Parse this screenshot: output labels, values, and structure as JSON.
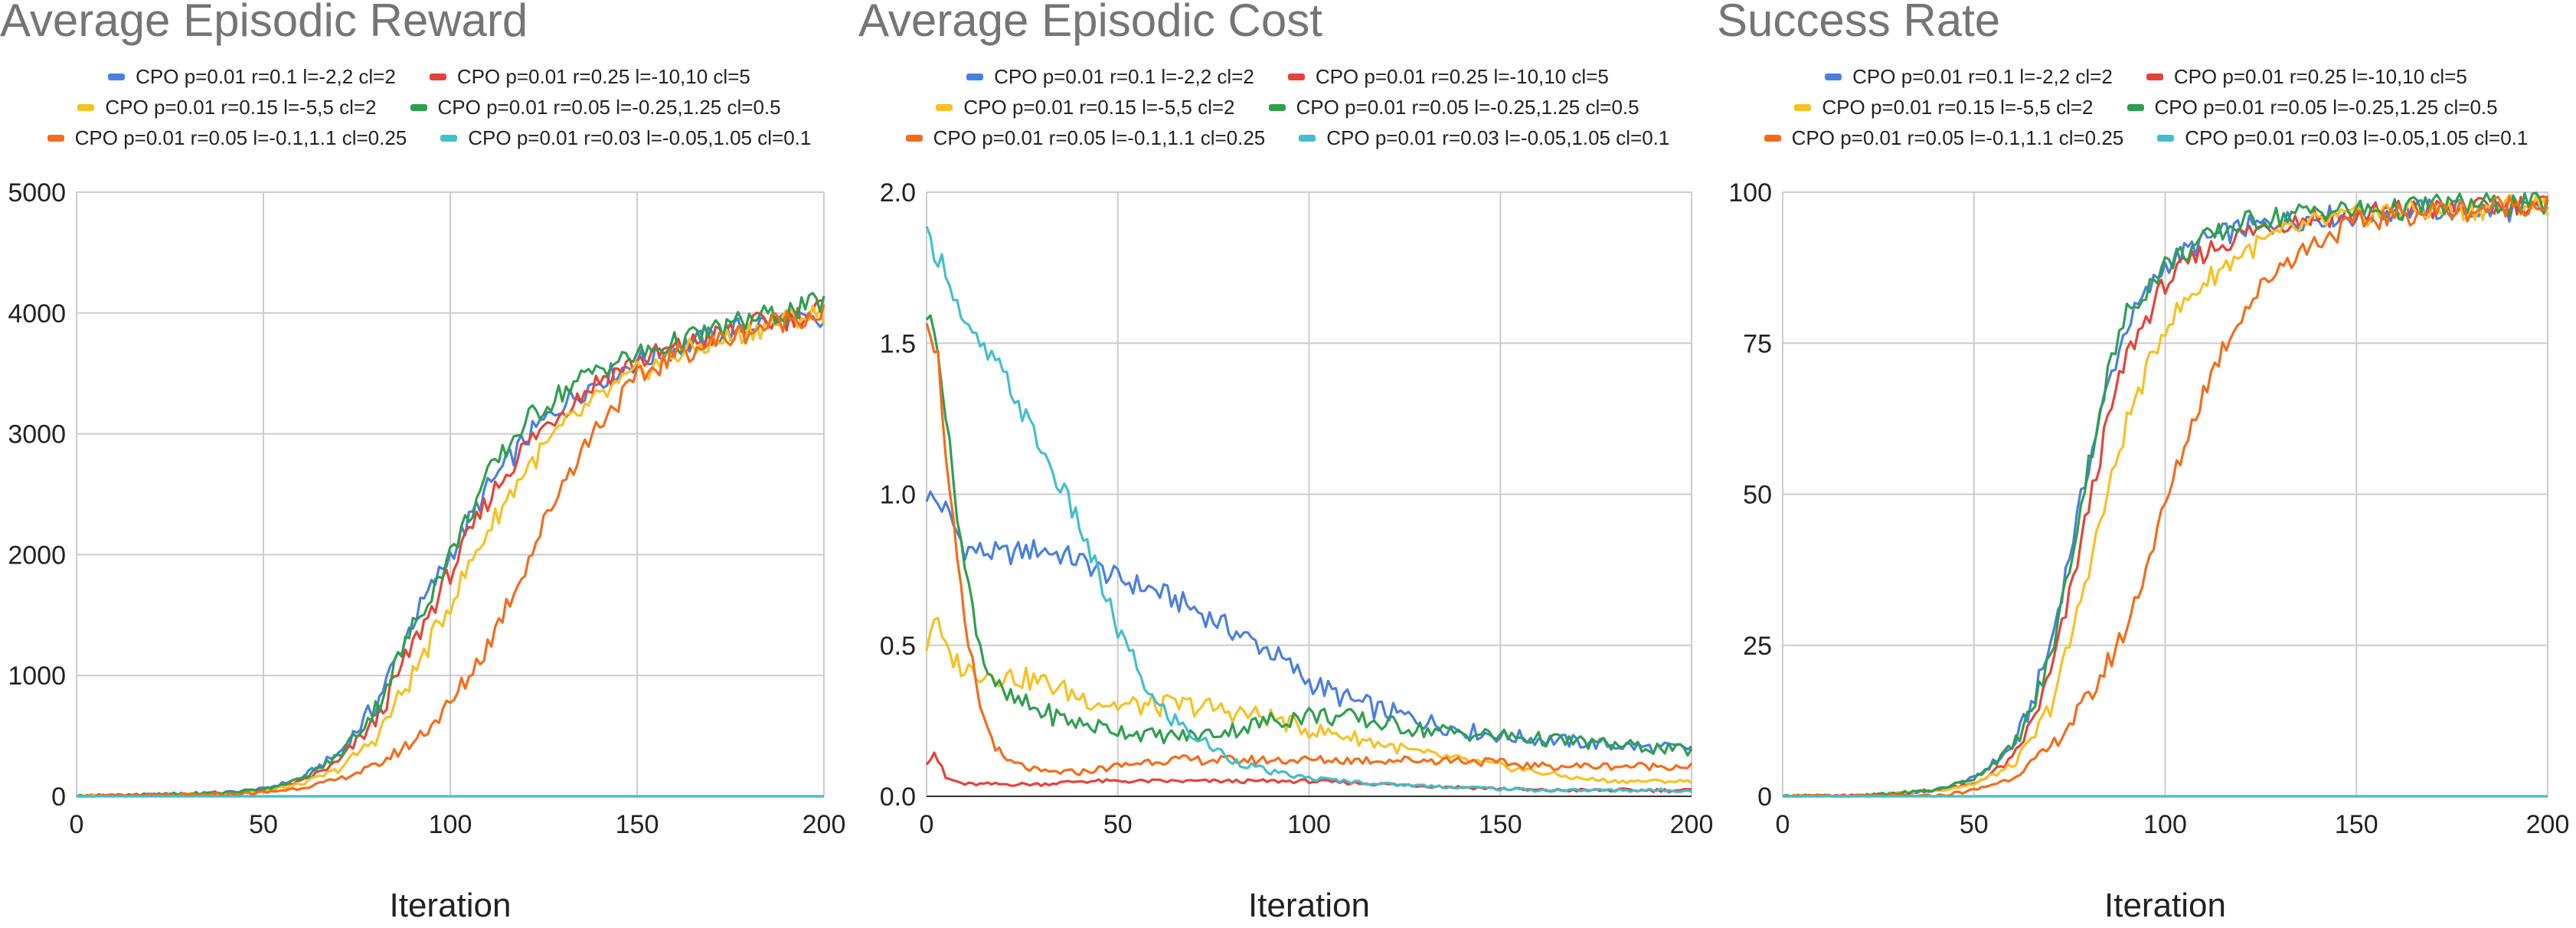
{
  "legend_labels": [
    "CPO p=0.01 r=0.1 l=-2,2 cl=2",
    "CPO p=0.01 r=0.25 l=-10,10 cl=5",
    "CPO p=0.01 r=0.15 l=-5,5 cl=2",
    "CPO p=0.01 r=0.05 l=-0.25,1.25 cl=0.5",
    "CPO p=0.01 r=0.05 l=-0.1,1.1 cl=0.25",
    "CPO p=0.01 r=0.03 l=-0.05,1.05 cl=0.1"
  ],
  "series_colors": [
    "#4a7fe0",
    "#e5433a",
    "#f6c122",
    "#2f9f4f",
    "#f46c1a",
    "#42bfcb"
  ],
  "chart_data": [
    {
      "type": "line",
      "title": "Average Episodic Reward",
      "xlabel": "Iteration",
      "ylabel": "",
      "xlim": [
        0,
        200
      ],
      "ylim": [
        0,
        5000
      ],
      "xticks": [
        0,
        50,
        100,
        150,
        200
      ],
      "yticks": [
        0,
        1000,
        2000,
        3000,
        4000,
        5000
      ],
      "ytick_labels": [
        "0",
        "1000",
        "2000",
        "3000",
        "4000",
        "5000"
      ],
      "grid": true,
      "legend_position": "top",
      "series": [
        {
          "name": "CPO p=0.01 r=0.1 l=-2,2 cl=2",
          "color": "#4a7fe0",
          "x": [
            0,
            20,
            40,
            50,
            60,
            70,
            80,
            90,
            100,
            110,
            120,
            130,
            140,
            150,
            160,
            170,
            180,
            190,
            200
          ],
          "y": [
            0,
            10,
            30,
            60,
            150,
            350,
            750,
            1450,
            2000,
            2550,
            2950,
            3250,
            3450,
            3600,
            3700,
            3800,
            3900,
            3950,
            3900
          ]
        },
        {
          "name": "CPO p=0.01 r=0.25 l=-10,10 cl=5",
          "color": "#e5433a",
          "x": [
            0,
            20,
            40,
            50,
            60,
            70,
            80,
            90,
            100,
            110,
            120,
            130,
            140,
            150,
            160,
            170,
            180,
            190,
            200
          ],
          "y": [
            0,
            8,
            25,
            50,
            120,
            280,
            620,
            1250,
            1850,
            2450,
            2900,
            3200,
            3450,
            3600,
            3700,
            3800,
            3900,
            3950,
            4050
          ]
        },
        {
          "name": "CPO p=0.01 r=0.15 l=-5,5 cl=2",
          "color": "#f6c122",
          "x": [
            0,
            20,
            40,
            50,
            60,
            70,
            80,
            90,
            100,
            110,
            120,
            130,
            140,
            150,
            160,
            170,
            180,
            190,
            200
          ],
          "y": [
            0,
            8,
            22,
            45,
            100,
            220,
            480,
            1000,
            1600,
            2200,
            2700,
            3050,
            3300,
            3500,
            3650,
            3750,
            3850,
            3950,
            4000
          ]
        },
        {
          "name": "CPO p=0.01 r=0.05 l=-0.25,1.25 cl=0.5",
          "color": "#2f9f4f",
          "x": [
            0,
            20,
            40,
            50,
            60,
            70,
            80,
            90,
            100,
            110,
            120,
            130,
            140,
            150,
            160,
            170,
            180,
            190,
            200
          ],
          "y": [
            0,
            10,
            30,
            60,
            140,
            330,
            720,
            1400,
            2000,
            2650,
            3100,
            3350,
            3550,
            3650,
            3750,
            3850,
            3950,
            4000,
            4100
          ]
        },
        {
          "name": "CPO p=0.01 r=0.05 l=-0.1,1.1 cl=0.25",
          "color": "#f46c1a",
          "x": [
            0,
            20,
            40,
            50,
            60,
            70,
            80,
            90,
            100,
            110,
            120,
            130,
            140,
            150,
            160,
            170,
            180,
            190,
            200
          ],
          "y": [
            0,
            5,
            15,
            30,
            70,
            140,
            250,
            450,
            750,
            1250,
            1900,
            2600,
            3100,
            3450,
            3650,
            3750,
            3850,
            3950,
            4000
          ]
        },
        {
          "name": "CPO p=0.01 r=0.03 l=-0.05,1.05 cl=0.1",
          "color": "#42bfcb",
          "x": [
            0,
            50,
            100,
            150,
            200
          ],
          "y": [
            0,
            0,
            0,
            0,
            0
          ]
        }
      ]
    },
    {
      "type": "line",
      "title": "Average Episodic Cost",
      "xlabel": "Iteration",
      "ylabel": "",
      "xlim": [
        0,
        200
      ],
      "ylim": [
        0,
        2.0
      ],
      "xticks": [
        0,
        50,
        100,
        150,
        200
      ],
      "yticks": [
        0,
        0.5,
        1.0,
        1.5,
        2.0
      ],
      "ytick_labels": [
        "0.0",
        "0.5",
        "1.0",
        "1.5",
        "2.0"
      ],
      "grid": true,
      "legend_position": "top",
      "series": [
        {
          "name": "CPO p=0.01 r=0.1 l=-2,2 cl=2",
          "color": "#4a7fe0",
          "x": [
            0,
            5,
            10,
            20,
            30,
            40,
            50,
            60,
            70,
            80,
            90,
            100,
            110,
            120,
            130,
            140,
            150,
            160,
            170,
            180,
            190,
            200
          ],
          "y": [
            1.0,
            0.95,
            0.82,
            0.8,
            0.82,
            0.78,
            0.72,
            0.68,
            0.62,
            0.55,
            0.48,
            0.38,
            0.32,
            0.28,
            0.25,
            0.22,
            0.2,
            0.19,
            0.18,
            0.17,
            0.16,
            0.16
          ]
        },
        {
          "name": "CPO p=0.01 r=0.25 l=-10,10 cl=5",
          "color": "#e5433a",
          "x": [
            0,
            2,
            5,
            10,
            20,
            30,
            40,
            50,
            60,
            80,
            100,
            120,
            140,
            160,
            180,
            200
          ],
          "y": [
            0.12,
            0.15,
            0.06,
            0.04,
            0.04,
            0.04,
            0.05,
            0.05,
            0.05,
            0.05,
            0.05,
            0.04,
            0.03,
            0.02,
            0.02,
            0.02
          ]
        },
        {
          "name": "CPO p=0.01 r=0.15 l=-5,5 cl=2",
          "color": "#f6c122",
          "x": [
            0,
            2,
            5,
            10,
            20,
            30,
            40,
            50,
            60,
            70,
            80,
            90,
            100,
            110,
            120,
            130,
            140,
            150,
            160,
            170,
            180,
            190,
            200
          ],
          "y": [
            0.5,
            0.6,
            0.48,
            0.42,
            0.4,
            0.38,
            0.33,
            0.3,
            0.3,
            0.3,
            0.28,
            0.26,
            0.22,
            0.2,
            0.17,
            0.14,
            0.12,
            0.1,
            0.08,
            0.06,
            0.05,
            0.05,
            0.05
          ]
        },
        {
          "name": "CPO p=0.01 r=0.05 l=-0.25,1.25 cl=0.5",
          "color": "#2f9f4f",
          "x": [
            0,
            3,
            6,
            10,
            15,
            20,
            30,
            40,
            50,
            60,
            70,
            80,
            90,
            100,
            110,
            120,
            130,
            140,
            150,
            160,
            170,
            180,
            190,
            200
          ],
          "y": [
            1.6,
            1.5,
            1.15,
            0.75,
            0.45,
            0.33,
            0.28,
            0.24,
            0.22,
            0.2,
            0.2,
            0.22,
            0.25,
            0.27,
            0.26,
            0.24,
            0.22,
            0.21,
            0.2,
            0.19,
            0.18,
            0.17,
            0.16,
            0.15
          ]
        },
        {
          "name": "CPO p=0.01 r=0.05 l=-0.1,1.1 cl=0.25",
          "color": "#f46c1a",
          "x": [
            0,
            3,
            6,
            10,
            15,
            20,
            30,
            40,
            50,
            60,
            70,
            80,
            90,
            100,
            120,
            140,
            160,
            180,
            200
          ],
          "y": [
            1.6,
            1.45,
            1.0,
            0.55,
            0.25,
            0.12,
            0.08,
            0.08,
            0.1,
            0.12,
            0.12,
            0.12,
            0.12,
            0.12,
            0.12,
            0.12,
            0.1,
            0.1,
            0.1
          ]
        },
        {
          "name": "CPO p=0.01 r=0.03 l=-0.05,1.05 cl=0.1",
          "color": "#42bfcb",
          "x": [
            0,
            5,
            10,
            20,
            30,
            40,
            50,
            60,
            70,
            80,
            90,
            100,
            110,
            120,
            140,
            160,
            180,
            200
          ],
          "y": [
            1.85,
            1.75,
            1.55,
            1.4,
            1.15,
            0.9,
            0.55,
            0.3,
            0.2,
            0.12,
            0.08,
            0.06,
            0.05,
            0.04,
            0.03,
            0.02,
            0.02,
            0.02
          ]
        }
      ]
    },
    {
      "type": "line",
      "title": "Success Rate",
      "xlabel": "Iteration",
      "ylabel": "",
      "xlim": [
        0,
        200
      ],
      "ylim": [
        0,
        100
      ],
      "xticks": [
        0,
        50,
        100,
        150,
        200
      ],
      "yticks": [
        0,
        25,
        50,
        75,
        100
      ],
      "ytick_labels": [
        "0",
        "25",
        "50",
        "75",
        "100"
      ],
      "grid": true,
      "legend_position": "top",
      "series": [
        {
          "name": "CPO p=0.01 r=0.1 l=-2,2 cl=2",
          "color": "#4a7fe0",
          "x": [
            0,
            20,
            40,
            50,
            60,
            65,
            70,
            75,
            80,
            85,
            90,
            100,
            110,
            120,
            130,
            140,
            150,
            160,
            170,
            180,
            190,
            200
          ],
          "y": [
            0,
            0,
            1,
            3,
            8,
            15,
            25,
            40,
            55,
            68,
            78,
            88,
            92,
            94,
            95,
            96,
            96,
            97,
            97,
            97,
            97,
            97
          ]
        },
        {
          "name": "CPO p=0.01 r=0.25 l=-10,10 cl=5",
          "color": "#e5433a",
          "x": [
            0,
            20,
            40,
            50,
            60,
            65,
            70,
            75,
            80,
            85,
            90,
            100,
            110,
            120,
            130,
            140,
            150,
            160,
            170,
            180,
            190,
            200
          ],
          "y": [
            0,
            0,
            1,
            2,
            6,
            12,
            20,
            33,
            48,
            62,
            73,
            85,
            90,
            93,
            95,
            96,
            96,
            97,
            97,
            97,
            98,
            98
          ]
        },
        {
          "name": "CPO p=0.01 r=0.15 l=-5,5 cl=2",
          "color": "#f6c122",
          "x": [
            0,
            20,
            40,
            50,
            60,
            65,
            70,
            75,
            80,
            85,
            90,
            100,
            110,
            120,
            130,
            140,
            150,
            160,
            170,
            180,
            190,
            200
          ],
          "y": [
            0,
            0,
            1,
            2,
            5,
            9,
            15,
            25,
            38,
            50,
            62,
            78,
            85,
            90,
            93,
            95,
            96,
            97,
            97,
            97,
            98,
            98
          ]
        },
        {
          "name": "CPO p=0.01 r=0.05 l=-0.25,1.25 cl=0.5",
          "color": "#2f9f4f",
          "x": [
            0,
            20,
            40,
            50,
            60,
            65,
            70,
            75,
            80,
            85,
            90,
            100,
            110,
            120,
            130,
            140,
            150,
            160,
            170,
            180,
            190,
            200
          ],
          "y": [
            0,
            0,
            1,
            3,
            8,
            14,
            23,
            38,
            55,
            70,
            80,
            88,
            92,
            95,
            96,
            97,
            97,
            97,
            98,
            98,
            98,
            98
          ]
        },
        {
          "name": "CPO p=0.01 r=0.05 l=-0.1,1.1 cl=0.25",
          "color": "#f46c1a",
          "x": [
            0,
            20,
            40,
            50,
            60,
            70,
            75,
            80,
            85,
            90,
            95,
            100,
            105,
            110,
            115,
            120,
            130,
            140,
            150,
            160,
            170,
            180,
            190,
            200
          ],
          "y": [
            0,
            0,
            0,
            1,
            3,
            8,
            12,
            16,
            22,
            28,
            38,
            48,
            58,
            67,
            74,
            80,
            88,
            92,
            95,
            96,
            97,
            97,
            98,
            98
          ]
        },
        {
          "name": "CPO p=0.01 r=0.03 l=-0.05,1.05 cl=0.1",
          "color": "#42bfcb",
          "x": [
            0,
            50,
            100,
            150,
            200
          ],
          "y": [
            0,
            0,
            0,
            0,
            0
          ]
        }
      ]
    }
  ]
}
